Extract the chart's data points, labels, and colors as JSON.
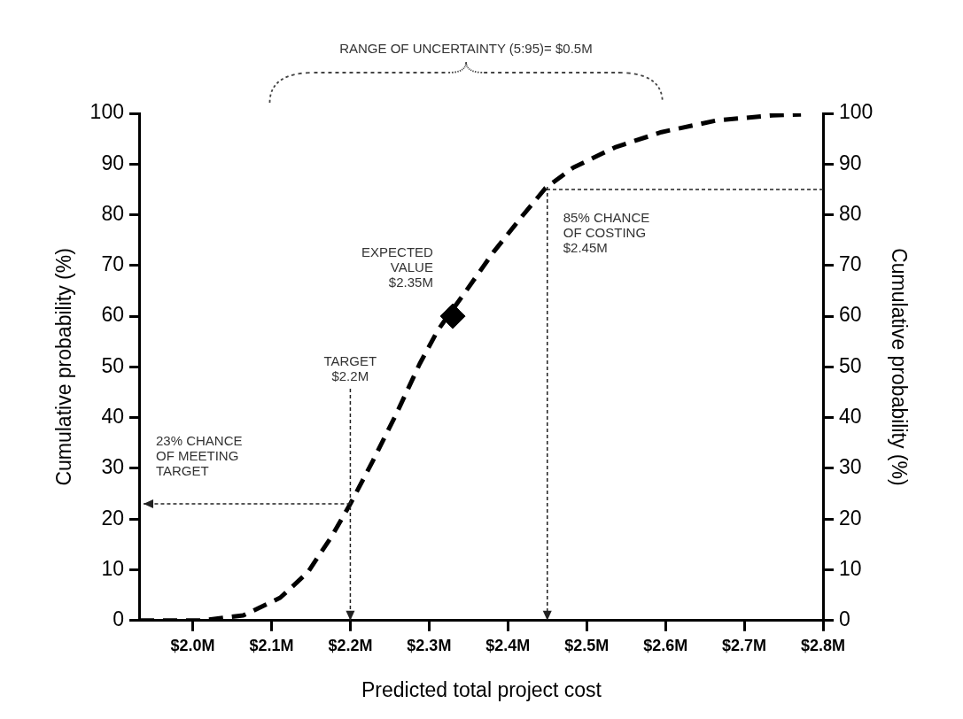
{
  "chart_data": {
    "type": "scatter",
    "xlabel": "Predicted total project cost",
    "ylabel": "Cumulative probability (%)",
    "y2label": "Cumulative probability (%)",
    "series": [
      {
        "type": "line",
        "color": "#000000",
        "line_style": "dashed",
        "x": [
          1.933,
          2.01,
          2.064,
          2.111,
          2.146,
          2.176,
          2.2,
          2.229,
          2.258,
          2.288,
          2.311,
          2.326,
          2.347,
          2.382,
          2.418,
          2.448,
          2.483,
          2.536,
          2.595,
          2.665,
          2.736,
          2.772
        ],
        "values": [
          0,
          0,
          1,
          4.5,
          9.5,
          16.5,
          23,
          31.6,
          40.6,
          50.6,
          57.2,
          60.5,
          65,
          72.7,
          79.7,
          85.3,
          89.3,
          93.3,
          96.3,
          98.6,
          99.6,
          99.8
        ]
      },
      {
        "marker": "diamond",
        "color": "#000000",
        "x": [
          2.33
        ],
        "values": [
          60
        ]
      }
    ],
    "xlim": [
      1.933,
      2.8
    ],
    "xticks": [
      {
        "value": 2.0,
        "label": "$2.0M"
      },
      {
        "value": 2.1,
        "label": "$2.1M"
      },
      {
        "value": 2.2,
        "label": "$2.2M"
      },
      {
        "value": 2.3,
        "label": "$2.3M"
      },
      {
        "value": 2.4,
        "label": "$2.4M"
      },
      {
        "value": 2.5,
        "label": "$2.5M"
      },
      {
        "value": 2.6,
        "label": "$2.6M"
      },
      {
        "value": 2.7,
        "label": "$2.7M"
      },
      {
        "value": 2.8,
        "label": "$2.8M"
      }
    ],
    "ylim": [
      0,
      100
    ],
    "yticks": [
      0,
      10,
      20,
      30,
      40,
      50,
      60,
      70,
      80,
      90,
      100
    ],
    "y2lim": [
      0,
      100
    ],
    "y2ticks": [
      0,
      10,
      20,
      30,
      40,
      50,
      60,
      70,
      80,
      90,
      100
    ],
    "ref_lines": [
      {
        "axis": "x",
        "value": 2.2,
        "label": "TARGET\n$2.2M"
      },
      {
        "axis": "y",
        "value": 23,
        "label": "23% CHANCE\nOF MEETING\nTARGET"
      },
      {
        "axis": "x",
        "value": 2.45,
        "label": "85% CHANCE\nOF COSTING\n$2.45M"
      },
      {
        "axis": "y",
        "value": 85
      }
    ],
    "annotations": [
      "RANGE OF UNCERTAINTY (5:95)= $0.5M",
      {
        "text": "EXPECTED\nVALUE\n$2.35M",
        "x": 2.33,
        "y": 60
      }
    ],
    "grid": false,
    "legend": false
  }
}
